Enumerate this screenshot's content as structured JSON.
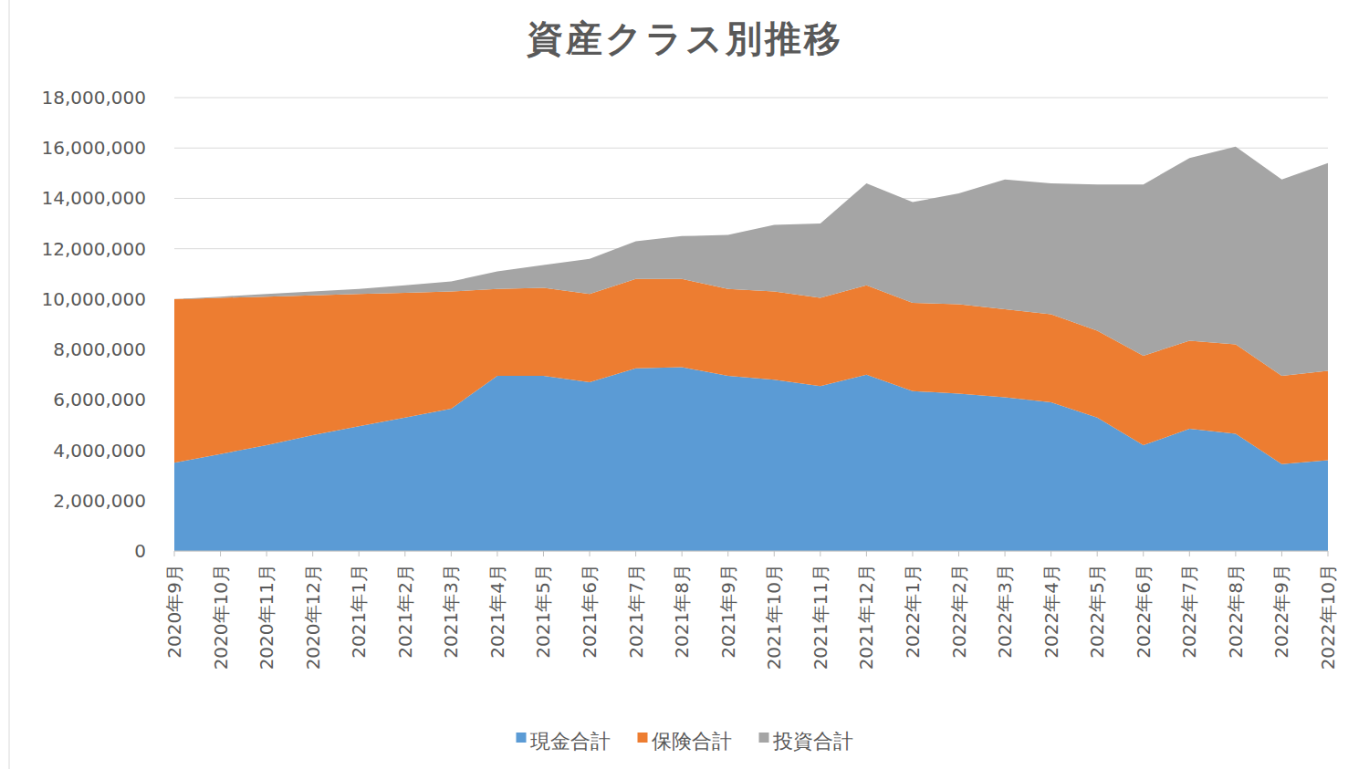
{
  "chart_data": {
    "type": "area",
    "stacked": true,
    "grid": true,
    "legend": "bottom",
    "title": "資産クラス別推移",
    "categories": [
      "2020年9月",
      "2020年10月",
      "2020年11月",
      "2020年12月",
      "2021年1月",
      "2021年2月",
      "2021年3月",
      "2021年4月",
      "2021年5月",
      "2021年6月",
      "2021年7月",
      "2021年8月",
      "2021年9月",
      "2021年10月",
      "2021年11月",
      "2021年12月",
      "2022年1月",
      "2022年2月",
      "2022年3月",
      "2022年4月",
      "2022年5月",
      "2022年6月",
      "2022年7月",
      "2022年8月",
      "2022年9月",
      "2022年10月"
    ],
    "series": [
      {
        "name": "現金合計",
        "color": "#5b9bd5",
        "values": [
          3500000,
          3850000,
          4200000,
          4600000,
          4950000,
          5300000,
          5650000,
          6950000,
          6950000,
          6700000,
          7250000,
          7300000,
          6950000,
          6800000,
          6550000,
          7000000,
          6350000,
          6250000,
          6100000,
          5900000,
          5300000,
          4200000,
          4850000,
          4650000,
          3450000,
          3600000
        ]
      },
      {
        "name": "保険合計",
        "color": "#ed7d31",
        "values": [
          6500000,
          6200000,
          5900000,
          5550000,
          5250000,
          4950000,
          4650000,
          3450000,
          3500000,
          3500000,
          3550000,
          3500000,
          3450000,
          3500000,
          3500000,
          3550000,
          3500000,
          3550000,
          3500000,
          3500000,
          3450000,
          3550000,
          3500000,
          3550000,
          3500000,
          3550000
        ]
      },
      {
        "name": "投資合計",
        "color": "#a5a5a5",
        "values": [
          0,
          50000,
          100000,
          150000,
          200000,
          300000,
          400000,
          700000,
          900000,
          1400000,
          1500000,
          1700000,
          2150000,
          2650000,
          2950000,
          4050000,
          4000000,
          4400000,
          5150000,
          5200000,
          5800000,
          6800000,
          7250000,
          7850000,
          7800000,
          8250000
        ]
      }
    ],
    "ylim": [
      0,
      18000000
    ],
    "yticks": [
      0,
      {
        "value": 2000000,
        "label": "2,000,000"
      },
      {
        "value": 4000000,
        "label": "4,000,000"
      },
      {
        "value": 6000000,
        "label": "6,000,000"
      },
      {
        "value": 8000000,
        "label": "8,000,000"
      },
      {
        "value": 10000000,
        "label": "10,000,000"
      },
      {
        "value": 12000000,
        "label": "12,000,000"
      },
      {
        "value": 14000000,
        "label": "14,000,000"
      },
      {
        "value": 16000000,
        "label": "16,000,000"
      },
      {
        "value": 18000000,
        "label": "18,000,000"
      }
    ]
  }
}
